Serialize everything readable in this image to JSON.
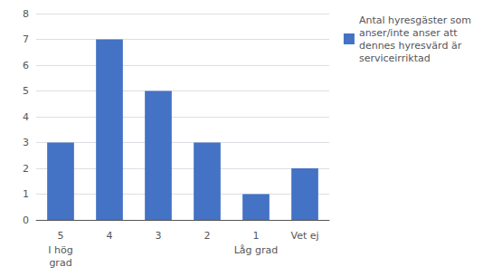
{
  "chart_data": {
    "type": "bar",
    "categories": [
      "5",
      "4",
      "3",
      "2",
      "1",
      "Vet ej"
    ],
    "series": [
      {
        "name": "Antal hyresgäster som\nanser/inte anser att\ndennes hyresvärd är\nserviceirriktad",
        "color": "#4472C4",
        "values": [
          3,
          7,
          5,
          3,
          1,
          2
        ]
      }
    ],
    "annotations": [
      {
        "category": "5",
        "text": "I hög\ngrad"
      },
      {
        "category": "1",
        "text": "Låg grad"
      }
    ],
    "ylim": [
      0,
      8
    ],
    "yticks": [
      0,
      1,
      2,
      3,
      4,
      5,
      6,
      7,
      8
    ],
    "grid": true,
    "legend": "right"
  }
}
